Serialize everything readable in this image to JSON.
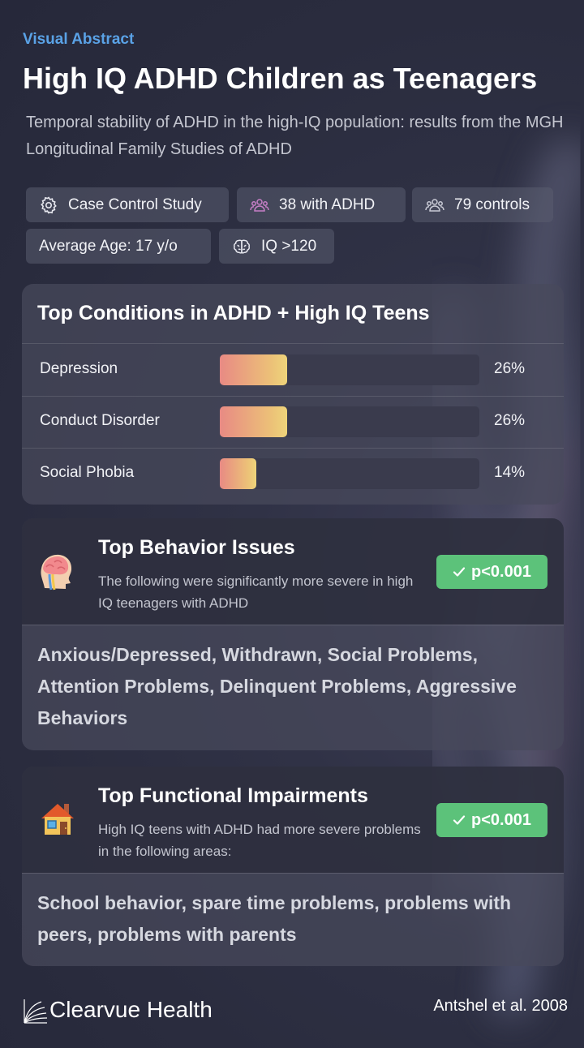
{
  "header": {
    "eyebrow": "Visual Abstract",
    "title": "High IQ ADHD Children as Teenagers",
    "subtitle": "Temporal stability of ADHD in the high-IQ population: results from the MGH Longitudinal Family Studies of ADHD"
  },
  "tags": {
    "study_type": "Case Control Study",
    "adhd_count": "38 with ADHD",
    "controls": "79 controls",
    "age": "Average Age: 17 y/o",
    "iq": "IQ >120"
  },
  "conditions": {
    "title": "Top Conditions in ADHD + High IQ Teens",
    "items": [
      {
        "name": "Depression",
        "value": 26,
        "label": "26%"
      },
      {
        "name": "Conduct Disorder",
        "value": 26,
        "label": "26%"
      },
      {
        "name": "Social Phobia",
        "value": 14,
        "label": "14%"
      }
    ],
    "bar_colors": [
      "#e88a84",
      "#eed47a"
    ]
  },
  "behavior": {
    "icon": "brain-head-icon",
    "title": "Top Behavior Issues",
    "desc": "The following were significantly more severe in high IQ teenagers with ADHD",
    "badge": "p<0.001",
    "items": "Anxious/Depressed, Withdrawn, Social Problems, Attention Problems, Delinquent Problems, Aggressive Behaviors"
  },
  "functional": {
    "icon": "house-icon",
    "title": "Top Functional Impairments",
    "desc": "High IQ teens with ADHD had more severe problems in the following areas:",
    "badge": "p<0.001",
    "items": "School behavior, spare time problems, problems with peers, problems with parents"
  },
  "footer": {
    "brand": "Clearvue Health",
    "citation": "Antshel et al. 2008"
  },
  "colors": {
    "accent": "#5aa2e6",
    "badge": "#5cc27a",
    "background": "#2c2e40"
  }
}
